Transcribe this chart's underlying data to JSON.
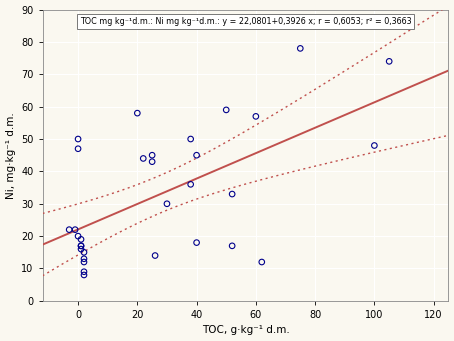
{
  "scatter_x": [
    -3,
    -1,
    0,
    0,
    0,
    1,
    1,
    1,
    1,
    2,
    2,
    2,
    2,
    2,
    20,
    22,
    25,
    25,
    26,
    30,
    38,
    38,
    40,
    40,
    50,
    52,
    52,
    60,
    62,
    75,
    100,
    105
  ],
  "scatter_y": [
    22,
    22,
    47,
    50,
    20,
    19,
    17,
    17,
    16,
    15,
    13,
    12,
    9,
    8,
    58,
    44,
    45,
    43,
    14,
    30,
    50,
    36,
    45,
    18,
    59,
    33,
    17,
    57,
    12,
    78,
    48,
    74
  ],
  "intercept": 22.0801,
  "slope": 0.3926,
  "r": 0.6053,
  "r2": 0.3663,
  "xlim": [
    -12,
    125
  ],
  "ylim": [
    0,
    90
  ],
  "xticks": [
    0,
    20,
    40,
    60,
    80,
    100,
    120
  ],
  "yticks": [
    0,
    10,
    20,
    30,
    40,
    50,
    60,
    70,
    80,
    90
  ],
  "xlabel": "TOC, g·kg⁻¹ d.m.",
  "ylabel": "Ni, mg·kg⁻¹ d.m.",
  "legend_text": "TOC mg kg⁻¹d.m.: Ni mg kg⁻¹d.m.: y = 22,0801+0,3926 x; r = 0,6053; r² = 0,3663",
  "scatter_color": "#00008B",
  "line_color": "#C0504D",
  "conf_color": "#C0504D",
  "background_color": "#FAF8F0",
  "grid_color": "#FFFFFF",
  "conf_t": 2.042
}
